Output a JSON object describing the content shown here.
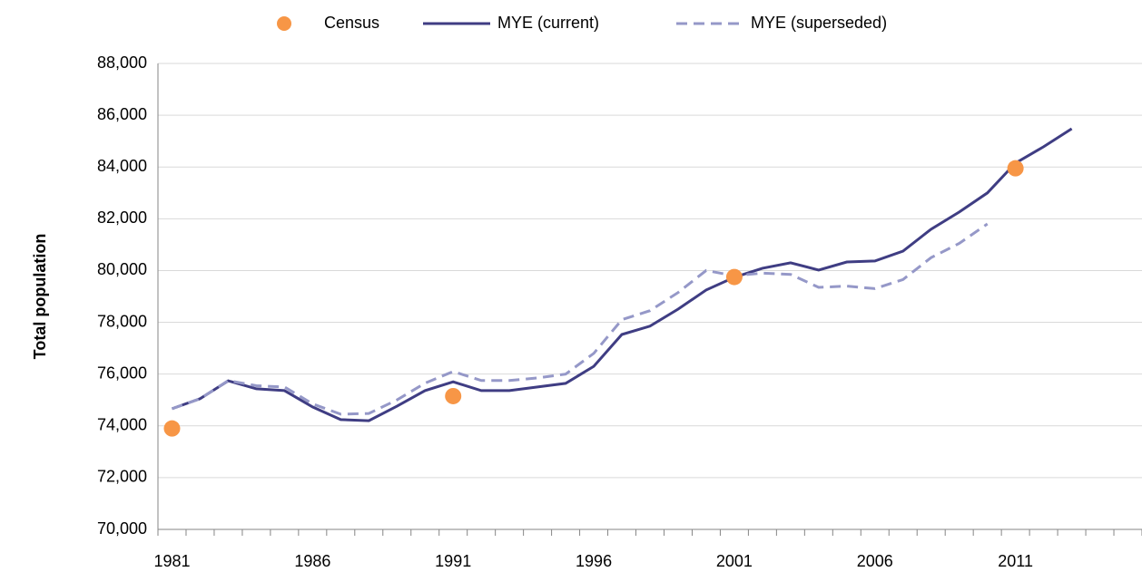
{
  "chart_data": {
    "type": "line",
    "y_label": "Total population",
    "categories": [
      "1981",
      null,
      null,
      null,
      null,
      "1986",
      null,
      null,
      null,
      null,
      "1991",
      null,
      null,
      null,
      null,
      "1996",
      null,
      null,
      null,
      null,
      "2001",
      null,
      null,
      null,
      null,
      "2006",
      null,
      null,
      null,
      null,
      "2011",
      null,
      null,
      null,
      null
    ],
    "series": [
      {
        "name": "Census",
        "type": "scatter",
        "color": "#f79646",
        "values": [
          73900,
          null,
          null,
          null,
          null,
          null,
          null,
          null,
          null,
          null,
          75150,
          null,
          null,
          null,
          null,
          null,
          null,
          null,
          null,
          null,
          79750,
          null,
          null,
          null,
          null,
          null,
          null,
          null,
          null,
          null,
          83950,
          null,
          null,
          null,
          null
        ]
      },
      {
        "name": "MYE (current)",
        "type": "line",
        "color": "#3f3d83",
        "values": [
          74660,
          75050,
          75740,
          75430,
          75360,
          74730,
          74240,
          74200,
          74760,
          75360,
          75700,
          75360,
          75360,
          75500,
          75640,
          76300,
          77530,
          77850,
          78510,
          79250,
          79740,
          80090,
          80300,
          80020,
          80330,
          80370,
          80750,
          81600,
          82260,
          83000,
          84150,
          84780,
          85480,
          null,
          null
        ]
      },
      {
        "name": "MYE (superseded)",
        "type": "line",
        "dashed": true,
        "color": "#9598c8",
        "values": [
          74660,
          75050,
          75750,
          75550,
          75500,
          74850,
          74450,
          74480,
          75000,
          75650,
          76100,
          75750,
          75750,
          75850,
          76000,
          76800,
          78100,
          78450,
          79150,
          80000,
          79800,
          79900,
          79850,
          79350,
          79400,
          79300,
          79650,
          80500,
          81050,
          81800,
          null,
          null,
          null,
          null,
          null
        ]
      }
    ],
    "ylim": [
      70000,
      88000
    ],
    "yticks": [
      {
        "value": 70000,
        "label": "70,000"
      },
      {
        "value": 72000,
        "label": "72,000"
      },
      {
        "value": 74000,
        "label": "74,000"
      },
      {
        "value": 76000,
        "label": "76,000"
      },
      {
        "value": 78000,
        "label": "78,000"
      },
      {
        "value": 80000,
        "label": "80,000"
      },
      {
        "value": 82000,
        "label": "82,000"
      },
      {
        "value": 84000,
        "label": "84,000"
      },
      {
        "value": 86000,
        "label": "86,000"
      },
      {
        "value": 88000,
        "label": "88,000"
      }
    ],
    "grid": true,
    "legend": "top"
  }
}
